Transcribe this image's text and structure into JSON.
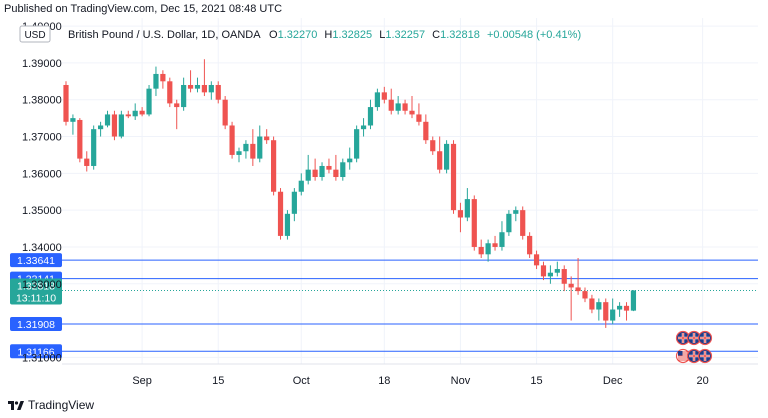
{
  "header": {
    "published": "Published on TradingView.com, Dec 15, 2021 08:48 UTC"
  },
  "footer": {
    "brand": "TradingView"
  },
  "legend": {
    "currency_badge": "USD",
    "symbol": "British Pound / U.S. Dollar, 1D, OANDA",
    "o_label": "O",
    "o_value": "1.32270",
    "h_label": "H",
    "h_value": "1.32825",
    "l_label": "L",
    "l_value": "1.32257",
    "c_label": "C",
    "c_value": "1.32818",
    "change": "+0.00548 (+0.41%)"
  },
  "colors": {
    "up": "#26a69a",
    "down": "#ef5350",
    "level_line": "#2962ff",
    "grid": "#f0f3fa",
    "axis_text": "#131722"
  },
  "chart_data": {
    "type": "candlestick",
    "y_ticks": [
      "1.40000",
      "1.39000",
      "1.38000",
      "1.37000",
      "1.36000",
      "1.35000",
      "1.34000",
      "1.33000",
      "1.31000"
    ],
    "x_ticks": [
      "Sep",
      "15",
      "Oct",
      "18",
      "Nov",
      "15",
      "Dec",
      "20"
    ],
    "ylim": [
      1.308,
      1.401
    ],
    "levels": [
      {
        "label": "1.33641",
        "value": 1.33641
      },
      {
        "label": "1.33141",
        "value": 1.33141
      },
      {
        "label": "1.31908",
        "value": 1.31908
      },
      {
        "label": "1.31166",
        "value": 1.31166
      }
    ],
    "last_price": {
      "label": "1.32818",
      "countdown": "13:11:10",
      "value": 1.32818
    },
    "candles": [
      {
        "o": 1.384,
        "h": 1.385,
        "l": 1.373,
        "c": 1.374
      },
      {
        "o": 1.374,
        "h": 1.376,
        "l": 1.3705,
        "c": 1.375
      },
      {
        "o": 1.3745,
        "h": 1.375,
        "l": 1.363,
        "c": 1.364
      },
      {
        "o": 1.364,
        "h": 1.366,
        "l": 1.3605,
        "c": 1.362
      },
      {
        "o": 1.362,
        "h": 1.373,
        "l": 1.361,
        "c": 1.372
      },
      {
        "o": 1.372,
        "h": 1.374,
        "l": 1.37,
        "c": 1.373
      },
      {
        "o": 1.373,
        "h": 1.377,
        "l": 1.3725,
        "c": 1.376
      },
      {
        "o": 1.376,
        "h": 1.377,
        "l": 1.369,
        "c": 1.37
      },
      {
        "o": 1.37,
        "h": 1.377,
        "l": 1.3695,
        "c": 1.376
      },
      {
        "o": 1.376,
        "h": 1.377,
        "l": 1.375,
        "c": 1.3755
      },
      {
        "o": 1.3755,
        "h": 1.379,
        "l": 1.3745,
        "c": 1.377
      },
      {
        "o": 1.377,
        "h": 1.378,
        "l": 1.3755,
        "c": 1.376
      },
      {
        "o": 1.376,
        "h": 1.384,
        "l": 1.3755,
        "c": 1.383
      },
      {
        "o": 1.383,
        "h": 1.389,
        "l": 1.381,
        "c": 1.387
      },
      {
        "o": 1.387,
        "h": 1.388,
        "l": 1.383,
        "c": 1.385
      },
      {
        "o": 1.385,
        "h": 1.386,
        "l": 1.378,
        "c": 1.379
      },
      {
        "o": 1.379,
        "h": 1.38,
        "l": 1.372,
        "c": 1.378
      },
      {
        "o": 1.378,
        "h": 1.386,
        "l": 1.377,
        "c": 1.384
      },
      {
        "o": 1.384,
        "h": 1.388,
        "l": 1.382,
        "c": 1.383
      },
      {
        "o": 1.383,
        "h": 1.386,
        "l": 1.382,
        "c": 1.384
      },
      {
        "o": 1.384,
        "h": 1.391,
        "l": 1.381,
        "c": 1.382
      },
      {
        "o": 1.382,
        "h": 1.385,
        "l": 1.38,
        "c": 1.384
      },
      {
        "o": 1.384,
        "h": 1.385,
        "l": 1.379,
        "c": 1.38
      },
      {
        "o": 1.38,
        "h": 1.381,
        "l": 1.372,
        "c": 1.373
      },
      {
        "o": 1.373,
        "h": 1.374,
        "l": 1.364,
        "c": 1.365
      },
      {
        "o": 1.365,
        "h": 1.367,
        "l": 1.363,
        "c": 1.366
      },
      {
        "o": 1.366,
        "h": 1.369,
        "l": 1.364,
        "c": 1.368
      },
      {
        "o": 1.368,
        "h": 1.372,
        "l": 1.362,
        "c": 1.364
      },
      {
        "o": 1.364,
        "h": 1.373,
        "l": 1.363,
        "c": 1.37
      },
      {
        "o": 1.37,
        "h": 1.372,
        "l": 1.368,
        "c": 1.369
      },
      {
        "o": 1.369,
        "h": 1.37,
        "l": 1.354,
        "c": 1.355
      },
      {
        "o": 1.355,
        "h": 1.356,
        "l": 1.342,
        "c": 1.343
      },
      {
        "o": 1.343,
        "h": 1.35,
        "l": 1.342,
        "c": 1.349
      },
      {
        "o": 1.349,
        "h": 1.356,
        "l": 1.347,
        "c": 1.355
      },
      {
        "o": 1.355,
        "h": 1.36,
        "l": 1.354,
        "c": 1.358
      },
      {
        "o": 1.358,
        "h": 1.365,
        "l": 1.357,
        "c": 1.361
      },
      {
        "o": 1.361,
        "h": 1.364,
        "l": 1.358,
        "c": 1.359
      },
      {
        "o": 1.359,
        "h": 1.363,
        "l": 1.358,
        "c": 1.362
      },
      {
        "o": 1.362,
        "h": 1.364,
        "l": 1.36,
        "c": 1.361
      },
      {
        "o": 1.361,
        "h": 1.365,
        "l": 1.358,
        "c": 1.359
      },
      {
        "o": 1.359,
        "h": 1.364,
        "l": 1.358,
        "c": 1.363
      },
      {
        "o": 1.363,
        "h": 1.367,
        "l": 1.361,
        "c": 1.364
      },
      {
        "o": 1.364,
        "h": 1.373,
        "l": 1.363,
        "c": 1.372
      },
      {
        "o": 1.372,
        "h": 1.375,
        "l": 1.37,
        "c": 1.373
      },
      {
        "o": 1.373,
        "h": 1.38,
        "l": 1.372,
        "c": 1.378
      },
      {
        "o": 1.378,
        "h": 1.383,
        "l": 1.377,
        "c": 1.382
      },
      {
        "o": 1.382,
        "h": 1.3835,
        "l": 1.379,
        "c": 1.38
      },
      {
        "o": 1.38,
        "h": 1.383,
        "l": 1.376,
        "c": 1.377
      },
      {
        "o": 1.377,
        "h": 1.381,
        "l": 1.376,
        "c": 1.379
      },
      {
        "o": 1.379,
        "h": 1.38,
        "l": 1.376,
        "c": 1.377
      },
      {
        "o": 1.377,
        "h": 1.381,
        "l": 1.375,
        "c": 1.376
      },
      {
        "o": 1.376,
        "h": 1.379,
        "l": 1.373,
        "c": 1.374
      },
      {
        "o": 1.374,
        "h": 1.376,
        "l": 1.368,
        "c": 1.369
      },
      {
        "o": 1.369,
        "h": 1.37,
        "l": 1.365,
        "c": 1.366
      },
      {
        "o": 1.366,
        "h": 1.37,
        "l": 1.36,
        "c": 1.361
      },
      {
        "o": 1.361,
        "h": 1.369,
        "l": 1.36,
        "c": 1.368
      },
      {
        "o": 1.368,
        "h": 1.369,
        "l": 1.349,
        "c": 1.35
      },
      {
        "o": 1.35,
        "h": 1.352,
        "l": 1.344,
        "c": 1.348
      },
      {
        "o": 1.348,
        "h": 1.356,
        "l": 1.347,
        "c": 1.353
      },
      {
        "o": 1.353,
        "h": 1.354,
        "l": 1.339,
        "c": 1.34
      },
      {
        "o": 1.34,
        "h": 1.342,
        "l": 1.337,
        "c": 1.338
      },
      {
        "o": 1.338,
        "h": 1.342,
        "l": 1.336,
        "c": 1.341
      },
      {
        "o": 1.341,
        "h": 1.343,
        "l": 1.339,
        "c": 1.34
      },
      {
        "o": 1.34,
        "h": 1.347,
        "l": 1.339,
        "c": 1.344
      },
      {
        "o": 1.344,
        "h": 1.35,
        "l": 1.343,
        "c": 1.349
      },
      {
        "o": 1.349,
        "h": 1.351,
        "l": 1.347,
        "c": 1.35
      },
      {
        "o": 1.35,
        "h": 1.351,
        "l": 1.342,
        "c": 1.343
      },
      {
        "o": 1.343,
        "h": 1.344,
        "l": 1.337,
        "c": 1.338
      },
      {
        "o": 1.338,
        "h": 1.339,
        "l": 1.334,
        "c": 1.335
      },
      {
        "o": 1.335,
        "h": 1.336,
        "l": 1.331,
        "c": 1.332
      },
      {
        "o": 1.332,
        "h": 1.335,
        "l": 1.33,
        "c": 1.333
      },
      {
        "o": 1.333,
        "h": 1.336,
        "l": 1.332,
        "c": 1.334
      },
      {
        "o": 1.334,
        "h": 1.335,
        "l": 1.328,
        "c": 1.33
      },
      {
        "o": 1.33,
        "h": 1.332,
        "l": 1.32,
        "c": 1.329
      },
      {
        "o": 1.329,
        "h": 1.337,
        "l": 1.327,
        "c": 1.328
      },
      {
        "o": 1.328,
        "h": 1.329,
        "l": 1.325,
        "c": 1.326
      },
      {
        "o": 1.326,
        "h": 1.327,
        "l": 1.322,
        "c": 1.323
      },
      {
        "o": 1.323,
        "h": 1.326,
        "l": 1.32,
        "c": 1.325
      },
      {
        "o": 1.325,
        "h": 1.326,
        "l": 1.318,
        "c": 1.32
      },
      {
        "o": 1.32,
        "h": 1.326,
        "l": 1.319,
        "c": 1.323
      },
      {
        "o": 1.323,
        "h": 1.325,
        "l": 1.321,
        "c": 1.324
      },
      {
        "o": 1.324,
        "h": 1.325,
        "l": 1.32,
        "c": 1.3227
      },
      {
        "o": 1.3227,
        "h": 1.32825,
        "l": 1.32257,
        "c": 1.32818
      }
    ]
  }
}
